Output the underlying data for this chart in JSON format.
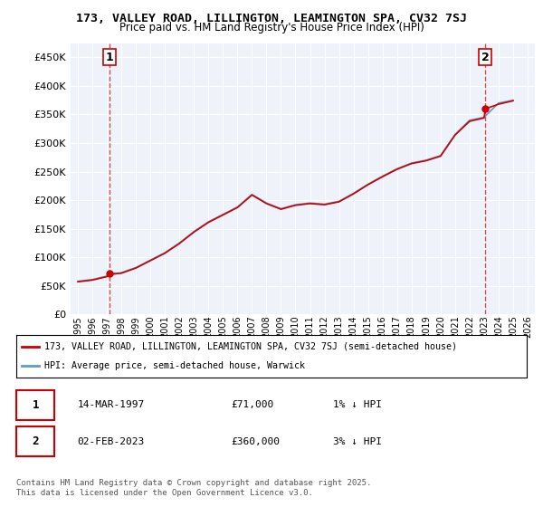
{
  "title_line1": "173, VALLEY ROAD, LILLINGTON, LEAMINGTON SPA, CV32 7SJ",
  "title_line2": "Price paid vs. HM Land Registry's House Price Index (HPI)",
  "ylabel_ticks": [
    "£0",
    "£50K",
    "£100K",
    "£150K",
    "£200K",
    "£250K",
    "£300K",
    "£350K",
    "£400K",
    "£450K"
  ],
  "ytick_values": [
    0,
    50000,
    100000,
    150000,
    200000,
    250000,
    300000,
    350000,
    400000,
    450000
  ],
  "ylim": [
    0,
    475000
  ],
  "xlim_start": 1994.5,
  "xlim_end": 2026.5,
  "xtick_years": [
    1995,
    1996,
    1997,
    1998,
    1999,
    2000,
    2001,
    2002,
    2003,
    2004,
    2005,
    2006,
    2007,
    2008,
    2009,
    2010,
    2011,
    2012,
    2013,
    2014,
    2015,
    2016,
    2017,
    2018,
    2019,
    2020,
    2021,
    2022,
    2023,
    2024,
    2025,
    2026
  ],
  "bg_color": "#eef3fb",
  "plot_bg_color": "#eef3fb",
  "grid_color": "#ffffff",
  "hpi_color": "#6699cc",
  "price_color": "#cc0000",
  "sale1_x": 1997.2,
  "sale1_y": 71000,
  "sale2_x": 2023.09,
  "sale2_y": 360000,
  "legend_label1": "173, VALLEY ROAD, LILLINGTON, LEAMINGTON SPA, CV32 7SJ (semi-detached house)",
  "legend_label2": "HPI: Average price, semi-detached house, Warwick",
  "annotation1_label": "1",
  "annotation2_label": "2",
  "footnote": "Contains HM Land Registry data © Crown copyright and database right 2025.\nThis data is licensed under the Open Government Licence v3.0.",
  "table_row1": [
    "1",
    "14-MAR-1997",
    "£71,000",
    "1% ↓ HPI"
  ],
  "table_row2": [
    "2",
    "02-FEB-2023",
    "£360,000",
    "3% ↓ HPI"
  ]
}
